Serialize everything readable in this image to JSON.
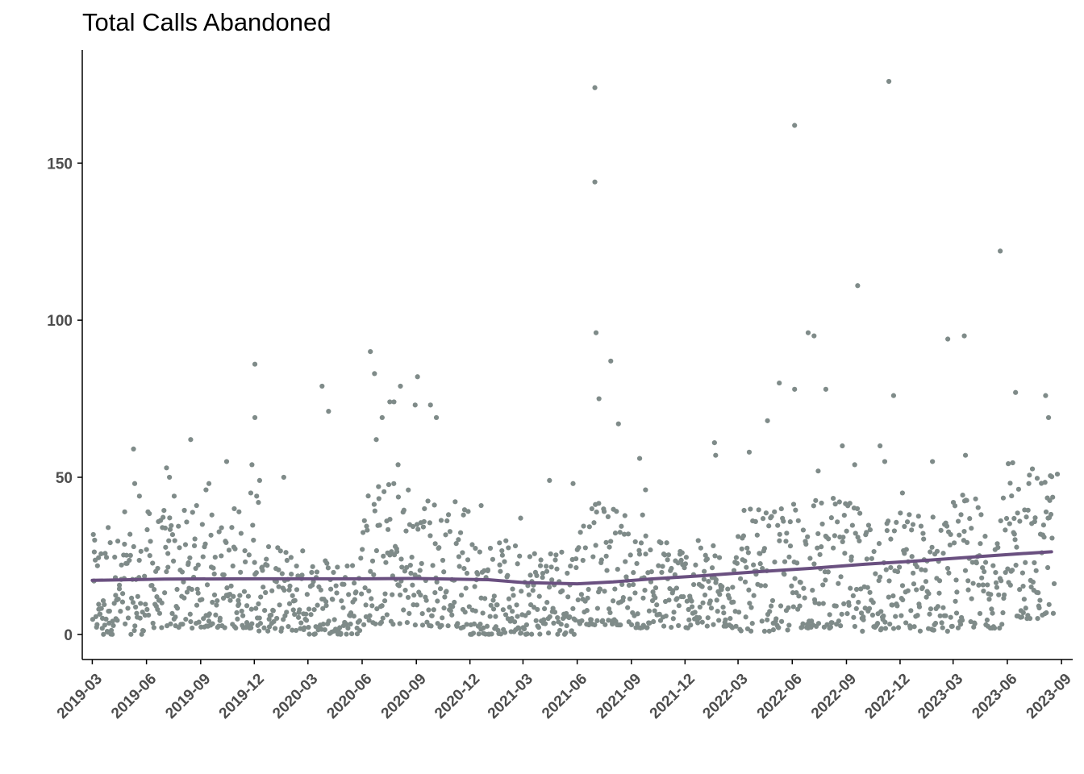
{
  "chart_data": {
    "type": "scatter",
    "title": "Total Calls Abandoned",
    "xlabel": "",
    "ylabel": "",
    "x_axis": {
      "kind": "date",
      "range": [
        "2019-02-12",
        "2023-09-20"
      ],
      "tick_dates": [
        "2019-03-01",
        "2019-06-01",
        "2019-09-01",
        "2019-12-01",
        "2020-03-01",
        "2020-06-01",
        "2020-09-01",
        "2020-12-01",
        "2021-03-01",
        "2021-06-01",
        "2021-09-01",
        "2021-12-01",
        "2022-03-01",
        "2022-06-01",
        "2022-09-01",
        "2022-12-01",
        "2023-03-01",
        "2023-06-01",
        "2023-09-01"
      ],
      "tick_labels": [
        "2019-03",
        "2019-06",
        "2019-09",
        "2019-12",
        "2020-03",
        "2020-06",
        "2020-09",
        "2020-12",
        "2021-03",
        "2021-06",
        "2021-09",
        "2021-12",
        "2022-03",
        "2022-06",
        "2022-09",
        "2022-12",
        "2023-03",
        "2023-06",
        "2023-09"
      ]
    },
    "y_axis": {
      "range": [
        -8,
        186
      ],
      "ticks": [
        0,
        50,
        100,
        150
      ],
      "tick_labels": [
        "0",
        "50",
        "100",
        "150"
      ]
    },
    "grid": false,
    "legend": "none",
    "point_color": "#7f8b89",
    "trend_color": "#6a5080",
    "series": [
      {
        "kind": "points",
        "points": [
          [
            "2019-03-05",
            30
          ],
          [
            "2019-03-12",
            8
          ],
          [
            "2019-03-20",
            0
          ],
          [
            "2019-03-28",
            34
          ],
          [
            "2019-04-10",
            5
          ],
          [
            "2019-04-25",
            39
          ],
          [
            "2019-05-10",
            59
          ],
          [
            "2019-05-12",
            48
          ],
          [
            "2019-05-20",
            44
          ],
          [
            "2019-06-01",
            27
          ],
          [
            "2019-06-20",
            21
          ],
          [
            "2019-07-05",
            53
          ],
          [
            "2019-07-10",
            50
          ],
          [
            "2019-07-18",
            44
          ],
          [
            "2019-08-15",
            62
          ],
          [
            "2019-08-25",
            41
          ],
          [
            "2019-09-10",
            46
          ],
          [
            "2019-09-15",
            48
          ],
          [
            "2019-09-20",
            38
          ],
          [
            "2019-10-15",
            55
          ],
          [
            "2019-10-28",
            40
          ],
          [
            "2019-11-05",
            39
          ],
          [
            "2019-11-25",
            45
          ],
          [
            "2019-11-27",
            54
          ],
          [
            "2019-12-05",
            44
          ],
          [
            "2019-12-08",
            42
          ],
          [
            "2019-12-10",
            49
          ],
          [
            "2019-12-02",
            86
          ],
          [
            "2019-12-02",
            69
          ],
          [
            "2020-01-20",
            50
          ],
          [
            "2020-03-25",
            79
          ],
          [
            "2020-04-05",
            71
          ],
          [
            "2020-06-15",
            90
          ],
          [
            "2020-06-22",
            83
          ],
          [
            "2020-06-25",
            62
          ],
          [
            "2020-07-05",
            69
          ],
          [
            "2020-07-18",
            74
          ],
          [
            "2020-07-25",
            74
          ],
          [
            "2020-08-05",
            79
          ],
          [
            "2020-08-01",
            54
          ],
          [
            "2020-09-03",
            82
          ],
          [
            "2020-08-30",
            73
          ],
          [
            "2020-09-25",
            73
          ],
          [
            "2020-10-05",
            69
          ],
          [
            "2020-11-20",
            38
          ],
          [
            "2020-12-20",
            41
          ],
          [
            "2021-02-25",
            37
          ],
          [
            "2021-04-15",
            49
          ],
          [
            "2021-05-25",
            48
          ],
          [
            "2021-07-01",
            174
          ],
          [
            "2021-07-01",
            144
          ],
          [
            "2021-07-03",
            96
          ],
          [
            "2021-07-08",
            75
          ],
          [
            "2021-07-28",
            87
          ],
          [
            "2021-08-10",
            67
          ],
          [
            "2021-09-15",
            56
          ],
          [
            "2021-09-25",
            46
          ],
          [
            "2021-09-20",
            38
          ],
          [
            "2022-01-20",
            61
          ],
          [
            "2022-01-22",
            57
          ],
          [
            "2022-03-20",
            58
          ],
          [
            "2022-04-20",
            68
          ],
          [
            "2022-05-10",
            80
          ],
          [
            "2022-06-05",
            162
          ],
          [
            "2022-06-05",
            78
          ],
          [
            "2022-06-28",
            96
          ],
          [
            "2022-07-08",
            95
          ],
          [
            "2022-07-15",
            52
          ],
          [
            "2022-07-28",
            78
          ],
          [
            "2022-08-25",
            60
          ],
          [
            "2022-09-20",
            111
          ],
          [
            "2022-09-15",
            54
          ],
          [
            "2022-10-28",
            60
          ],
          [
            "2022-11-05",
            55
          ],
          [
            "2022-11-12",
            176
          ],
          [
            "2022-11-20",
            76
          ],
          [
            "2022-12-05",
            45
          ],
          [
            "2023-01-25",
            55
          ],
          [
            "2023-02-20",
            94
          ],
          [
            "2023-03-20",
            95
          ],
          [
            "2023-03-22",
            57
          ],
          [
            "2023-05-20",
            122
          ],
          [
            "2023-06-15",
            77
          ],
          [
            "2023-08-05",
            76
          ],
          [
            "2023-08-10",
            69
          ],
          [
            "2023-08-25",
            51
          ]
        ]
      },
      {
        "kind": "dense-cloud",
        "description_note": "",
        "bands": [
          {
            "start": "2019-03-01",
            "end": "2019-05-31",
            "lo": 0,
            "hi": 32,
            "n": 85
          },
          {
            "start": "2019-06-01",
            "end": "2019-08-31",
            "lo": 2,
            "hi": 40,
            "n": 85
          },
          {
            "start": "2019-09-01",
            "end": "2019-11-30",
            "lo": 2,
            "hi": 36,
            "n": 85
          },
          {
            "start": "2019-12-01",
            "end": "2020-02-29",
            "lo": 1,
            "hi": 28,
            "n": 85
          },
          {
            "start": "2020-03-01",
            "end": "2020-05-31",
            "lo": 0,
            "hi": 26,
            "n": 85
          },
          {
            "start": "2020-06-01",
            "end": "2020-08-31",
            "lo": 3,
            "hi": 50,
            "n": 85
          },
          {
            "start": "2020-09-01",
            "end": "2020-11-30",
            "lo": 2,
            "hi": 45,
            "n": 85
          },
          {
            "start": "2020-12-01",
            "end": "2021-02-28",
            "lo": 0,
            "hi": 30,
            "n": 85
          },
          {
            "start": "2021-03-01",
            "end": "2021-05-31",
            "lo": 0,
            "hi": 30,
            "n": 85
          },
          {
            "start": "2021-06-01",
            "end": "2021-08-31",
            "lo": 3,
            "hi": 42,
            "n": 85
          },
          {
            "start": "2021-09-01",
            "end": "2021-11-30",
            "lo": 2,
            "hi": 32,
            "n": 85
          },
          {
            "start": "2021-12-01",
            "end": "2022-02-28",
            "lo": 2,
            "hi": 30,
            "n": 85
          },
          {
            "start": "2022-03-01",
            "end": "2022-05-31",
            "lo": 1,
            "hi": 40,
            "n": 85
          },
          {
            "start": "2022-06-01",
            "end": "2022-08-31",
            "lo": 2,
            "hi": 44,
            "n": 85
          },
          {
            "start": "2022-09-01",
            "end": "2022-11-30",
            "lo": 1,
            "hi": 42,
            "n": 85
          },
          {
            "start": "2022-12-01",
            "end": "2023-02-28",
            "lo": 1,
            "hi": 40,
            "n": 85
          },
          {
            "start": "2023-03-01",
            "end": "2023-05-31",
            "lo": 2,
            "hi": 45,
            "n": 85
          },
          {
            "start": "2023-06-01",
            "end": "2023-08-20",
            "lo": 5,
            "hi": 55,
            "n": 80
          }
        ]
      },
      {
        "kind": "trend",
        "points": [
          [
            "2019-03-01",
            17.2
          ],
          [
            "2019-07-01",
            17.6
          ],
          [
            "2019-12-01",
            17.7
          ],
          [
            "2020-06-01",
            17.7
          ],
          [
            "2020-09-01",
            17.8
          ],
          [
            "2021-01-01",
            17.4
          ],
          [
            "2021-03-01",
            16.5
          ],
          [
            "2021-06-01",
            16.1
          ],
          [
            "2021-08-01",
            16.7
          ],
          [
            "2021-10-01",
            17.6
          ],
          [
            "2022-01-01",
            18.7
          ],
          [
            "2022-04-01",
            19.9
          ],
          [
            "2022-07-01",
            21.0
          ],
          [
            "2022-10-01",
            22.3
          ],
          [
            "2023-01-01",
            23.4
          ],
          [
            "2023-04-01",
            24.6
          ],
          [
            "2023-06-01",
            25.4
          ],
          [
            "2023-08-15",
            26.3
          ]
        ]
      }
    ]
  }
}
